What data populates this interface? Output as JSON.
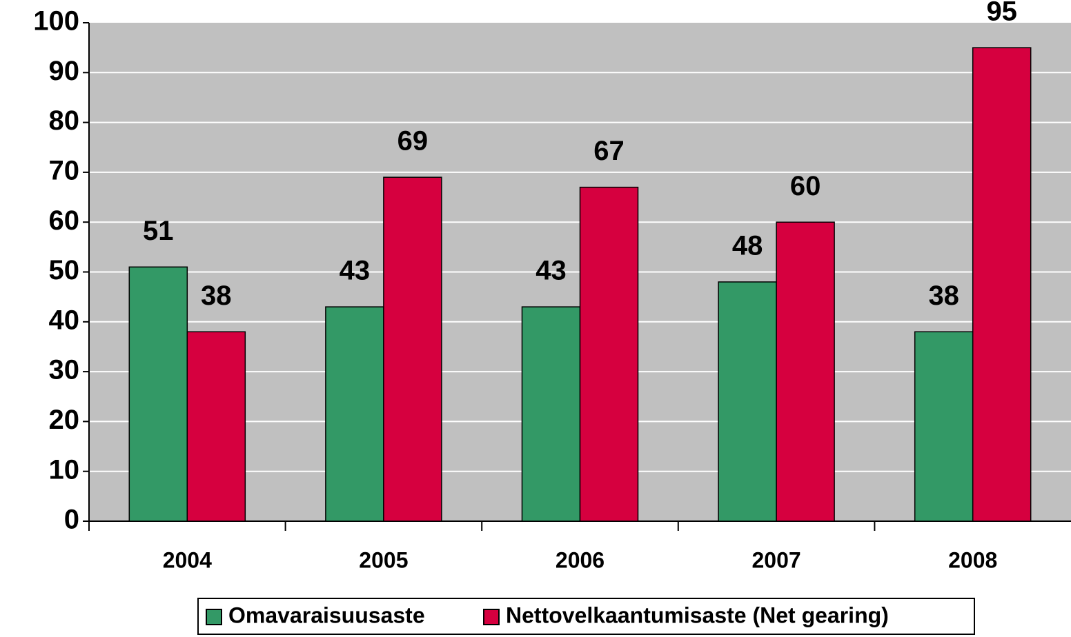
{
  "chart_data": {
    "type": "bar",
    "categories": [
      "2004",
      "2005",
      "2006",
      "2007",
      "2008"
    ],
    "series": [
      {
        "name": "Omavaraisuusaste",
        "color": "#339966",
        "values": [
          51,
          43,
          43,
          48,
          38
        ]
      },
      {
        "name": "Nettovelkaantumisaste (Net gearing)",
        "color": "#d6003f",
        "values": [
          38,
          69,
          67,
          60,
          95
        ]
      }
    ],
    "ylim": [
      0,
      100
    ],
    "yticks": [
      0,
      10,
      20,
      30,
      40,
      50,
      60,
      70,
      80,
      90,
      100
    ],
    "grid": true,
    "legend": "bottom"
  }
}
